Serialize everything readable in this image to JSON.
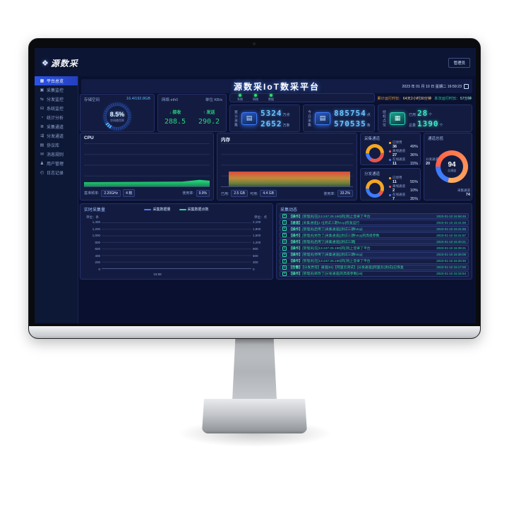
{
  "topbar": {
    "logo_text": "源数采",
    "admin_label": "管理员"
  },
  "header": {
    "title": "源数采IoT数采平台",
    "datetime": "2023 年 01 月 10 日 星期二 16:59:23",
    "uptime_total_label": "累计运行时长:",
    "uptime_total_value": "64天2小时30分钟",
    "uptime_session_label": "本次运行时长:",
    "uptime_session_value": "57分钟"
  },
  "sidebar": {
    "items": [
      {
        "key": "overview",
        "icon": "overview",
        "label": "平台总览",
        "active": true
      },
      {
        "key": "collect-monitor",
        "icon": "collect-monitor",
        "label": "采集监控"
      },
      {
        "key": "dispatch-monitor",
        "icon": "dispatch-monitor",
        "label": "分发监控"
      },
      {
        "key": "system-monitor",
        "icon": "system-monitor",
        "label": "系统监控"
      },
      {
        "key": "stats-analysis",
        "icon": "stats-analysis",
        "label": "统计分析"
      },
      {
        "key": "collect-channel",
        "icon": "collect-channel",
        "label": "采集通道"
      },
      {
        "key": "dispatch-channel",
        "icon": "dispatch-channel",
        "label": "分发通道"
      },
      {
        "key": "protocol-library",
        "icon": "protocol-library",
        "label": "协议库"
      },
      {
        "key": "message-rules",
        "icon": "message-rules",
        "label": "消息规则"
      },
      {
        "key": "user-management",
        "icon": "user-management",
        "label": "用户管理"
      },
      {
        "key": "log-records",
        "icon": "log-records",
        "label": "日志记录"
      }
    ]
  },
  "status_strip": {
    "items": [
      {
        "label": "系统",
        "color": "#2be06e"
      },
      {
        "label": "网络",
        "color": "#2be06e"
      },
      {
        "label": "数据",
        "color": "#2be06e"
      }
    ]
  },
  "cards": {
    "storage": {
      "title": "存储空间",
      "capacity": "16.4/192.8GB",
      "percent_text": "8.5%",
      "percent_value": 8.5,
      "caption": "空间使用率"
    },
    "network": {
      "title": "网络 eth0",
      "unit": "单位 KB/s",
      "recv_label": "↓ 接收",
      "recv_value": "288.5",
      "send_label": "↑ 发送",
      "send_value": "290.2"
    },
    "total": {
      "vertical_label": "累计采集",
      "row1_value": "5324",
      "row1_unit": "万点",
      "row2_value": "2652",
      "row2_unit": "万条"
    },
    "today": {
      "vertical_label": "今日采集",
      "row1_value": "885754",
      "row1_unit": "点",
      "row2_value": "570535",
      "row2_unit": "条"
    },
    "license": {
      "vertical_label": "授权点位",
      "row1_label": "已用",
      "row1_value": "28",
      "row1_unit": "个",
      "row2_label": "总量",
      "row2_value": "1390",
      "row2_unit": "个"
    }
  },
  "cpu_panel": {
    "title": "CPU",
    "freq_label": "基准频率:",
    "freq_value": "2.20GHz",
    "cores_value": "4 核",
    "usage_label": "使用率:",
    "usage_value": "9.9%"
  },
  "mem_panel": {
    "title": "内存",
    "used_label": "已用:",
    "used_value": "2.5 GB",
    "avail_label": "可用:",
    "avail_value": "4.4 GB",
    "usage_label": "使用率:",
    "usage_value": "33.2%"
  },
  "collect_channel": {
    "title": "采集通道",
    "stats": [
      {
        "label": "已停用",
        "value": "36",
        "pct": "49%",
        "pct_num": 49,
        "color": "#f5a623"
      },
      {
        "label": "离线通道",
        "value": "27",
        "pct": "36%",
        "pct_num": 36,
        "color": "#e8554d"
      },
      {
        "label": "在线通道",
        "value": "11",
        "pct": "15%",
        "pct_num": 15,
        "color": "#3f7bff"
      }
    ]
  },
  "dispatch_channel": {
    "title": "分发通道",
    "stats": [
      {
        "label": "已停用",
        "value": "11",
        "pct": "55%",
        "pct_num": 55,
        "color": "#f5a623"
      },
      {
        "label": "离线通道",
        "value": "2",
        "pct": "10%",
        "pct_num": 10,
        "color": "#e8554d"
      },
      {
        "label": "在线通道",
        "value": "7",
        "pct": "35%",
        "pct_num": 35,
        "color": "#3f7bff"
      }
    ]
  },
  "channel_overview": {
    "title": "通道总揽",
    "center_value": "94",
    "center_label": "总通道",
    "dispatch_label": "分发通道",
    "dispatch_value": "20",
    "collect_label": "采集通道",
    "collect_value": "74",
    "segments": [
      {
        "label": "采集通道",
        "pct_num": 79,
        "color": "#ff5b45",
        "color2": "#ffb061"
      },
      {
        "label": "分发通道",
        "pct_num": 21,
        "color": "#3f7bff"
      }
    ]
  },
  "realtime_chart": {
    "title": "实时采集量",
    "type": "line",
    "legend": [
      {
        "label": "采集数据量",
        "color": "#4f7bff"
      },
      {
        "label": "采集数据点数",
        "color": "#2bd9a0"
      }
    ],
    "left_axis_label": "单位：条",
    "right_axis_label": "单位：点",
    "left_ticks": [
      "1,400",
      "1,200",
      "1,000",
      "800",
      "600",
      "400",
      "200",
      "0"
    ],
    "right_ticks": [
      "2,100",
      "1,800",
      "1,500",
      "1,200",
      "900",
      "600",
      "300",
      "0"
    ],
    "x_tick": "16:58"
  },
  "activity": {
    "title": "采集动态",
    "rows": [
      {
        "tag": "【操作】",
        "text": "[管理员]在[13.247.25.190]的[测]上登录了平台",
        "time": "2023-01-10 16:58:46"
      },
      {
        "tag": "【通道】",
        "text": "[采集通道][17][测试三期fvtcp]恢复运行",
        "time": "2023-01-10 15:41:59"
      },
      {
        "tag": "【操作】",
        "text": "[管理员]启用了[采集通道][测试三期fvtcp]",
        "time": "2023-01-10 15:41:58"
      },
      {
        "tag": "【操作】",
        "text": "[管理员]修改了[采集通道][测试三期fvtcp]的高级参数",
        "time": "2023-01-10 15:41:57"
      },
      {
        "tag": "【操作】",
        "text": "[管理员]启用了[采集通道][测试三期]",
        "time": "2023-01-10 15:40:21"
      },
      {
        "tag": "【操作】",
        "text": "[管理员]在[13.247.25.190]的[测]上登录了平台",
        "time": "2023-01-10 15:39:21"
      },
      {
        "tag": "【操作】",
        "text": "[管理员]停用了[采集通道][测试三期fvtcp]",
        "time": "2023-01-10 15:39:08"
      },
      {
        "tag": "【操作】",
        "text": "[管理员]在[13.247.25.190]的[测]上登录了平台",
        "time": "2023-01-10 15:28:30"
      },
      {
        "tag": "【告警】",
        "text": "【分发异常】通道[91]【阿里云测试】[分发通道][阿里云(测试)]已恢复",
        "time": "2023-01-10 15:17:00"
      },
      {
        "tag": "【操作】",
        "text": "[管理员]修改了[分发通道]的高级参数[16]",
        "time": "2023-01-10 15:15:54"
      }
    ]
  }
}
